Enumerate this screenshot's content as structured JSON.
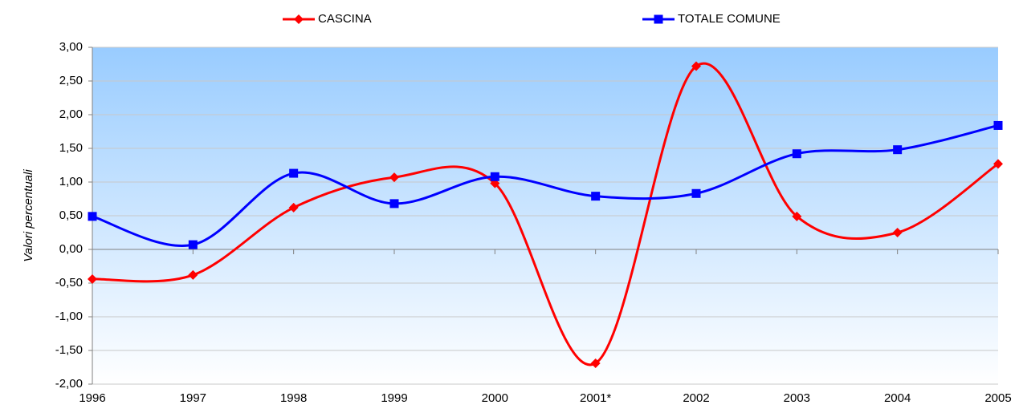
{
  "chart_data": {
    "type": "line",
    "y_label": "Valori percentuali",
    "categories": [
      "1996",
      "1997",
      "1998",
      "1999",
      "2000",
      "2001*",
      "2002",
      "2003",
      "2004",
      "2005"
    ],
    "series": [
      {
        "name": "CASCINA",
        "color": "#ff0000",
        "marker": "diamond",
        "values": [
          -0.44,
          -0.38,
          0.62,
          1.07,
          0.98,
          -1.69,
          2.72,
          0.49,
          0.25,
          1.27
        ]
      },
      {
        "name": "TOTALE COMUNE",
        "color": "#0000ff",
        "marker": "square",
        "values": [
          0.49,
          0.07,
          1.13,
          0.68,
          1.08,
          0.79,
          0.83,
          1.42,
          1.48,
          1.84
        ]
      }
    ],
    "ylim": [
      -2,
      3
    ],
    "yticks": [
      {
        "value": -2,
        "label": "-2,00"
      },
      {
        "value": -1.5,
        "label": "-1,50"
      },
      {
        "value": -1,
        "label": "-1,00"
      },
      {
        "value": -0.5,
        "label": "-0,50"
      },
      {
        "value": 0,
        "label": "0,00"
      },
      {
        "value": 0.5,
        "label": "0,50"
      },
      {
        "value": 1,
        "label": "1,00"
      },
      {
        "value": 1.5,
        "label": "1,50"
      },
      {
        "value": 2,
        "label": "2,00"
      },
      {
        "value": 2.5,
        "label": "2,50"
      },
      {
        "value": 3,
        "label": "3,00"
      }
    ],
    "grid": true,
    "smooth": true,
    "legend": "top"
  }
}
